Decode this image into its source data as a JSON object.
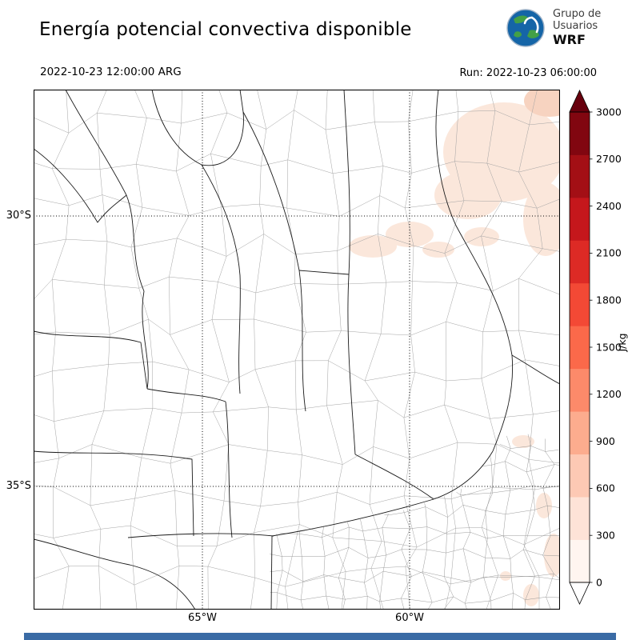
{
  "header": {
    "title": "Energía potencial convectiva disponible",
    "valid_time": "2022-10-23 12:00:00 ARG",
    "run_label": "Run: 2022-10-23 06:00:00",
    "logo": {
      "line1": "Grupo de",
      "line2": "Usuarios",
      "line3": "WRF",
      "ocean_color": "#1565a7",
      "land_color": "#43a047"
    }
  },
  "map": {
    "lat_ticks": [
      {
        "label": "30°S"
      },
      {
        "label": "35°S"
      }
    ],
    "lon_ticks": [
      {
        "label": "65°W"
      },
      {
        "label": "60°W"
      }
    ],
    "cape_fill_low": "#fbe7db",
    "cape_fill_mid": "#f7d3c0"
  },
  "colorbar": {
    "unit": "J/kg",
    "ticks": [
      "0",
      "300",
      "600",
      "900",
      "1200",
      "1500",
      "1800",
      "2100",
      "2400",
      "2700",
      "3000"
    ],
    "segment_colors": [
      "#fff5f0",
      "#fee3d7",
      "#fdc9b4",
      "#fcac8e",
      "#fc8a6a",
      "#fb694a",
      "#f34935",
      "#dd2a25",
      "#c5171c",
      "#a30f15",
      "#810610"
    ],
    "over_color": "#67000d",
    "under_color": "#ffffff"
  },
  "footer": {
    "bar_color": "#3a6ba5"
  }
}
